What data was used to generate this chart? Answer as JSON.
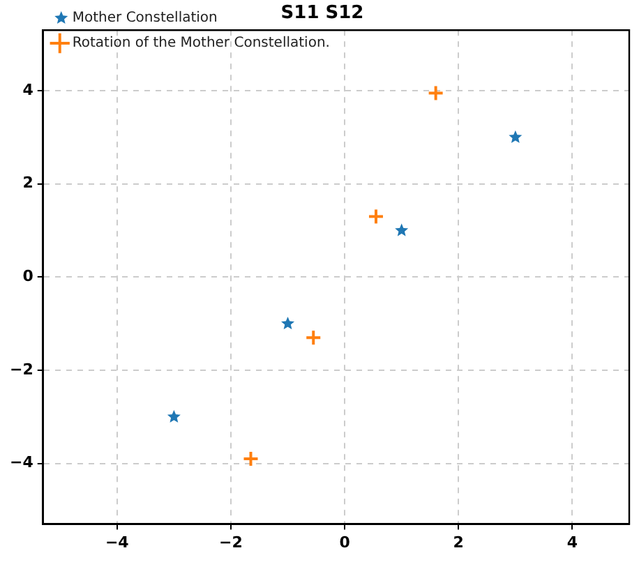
{
  "chart_data": {
    "type": "scatter",
    "title": "S11 S12",
    "series": [
      {
        "name": "Mother Constellation",
        "color": "#1f77b4",
        "marker": "star",
        "x": [
          -3,
          -1,
          1,
          3
        ],
        "values": [
          -3,
          -1,
          1,
          3
        ]
      },
      {
        "name": "Rotation of the Mother Constellation.",
        "color": "#ff7f0e",
        "marker": "cross",
        "x": [
          -1.65,
          -0.55,
          0.55,
          1.6
        ],
        "values": [
          -3.9,
          -1.3,
          1.3,
          3.95
        ]
      }
    ],
    "xlim": [
      -5.3,
      5.0
    ],
    "ylim": [
      -5.3,
      5.3
    ],
    "xticks": [
      -4,
      -2,
      0,
      2,
      4
    ],
    "yticks": [
      -4,
      -2,
      0,
      2,
      4
    ],
    "grid": true,
    "legend": "top left"
  }
}
